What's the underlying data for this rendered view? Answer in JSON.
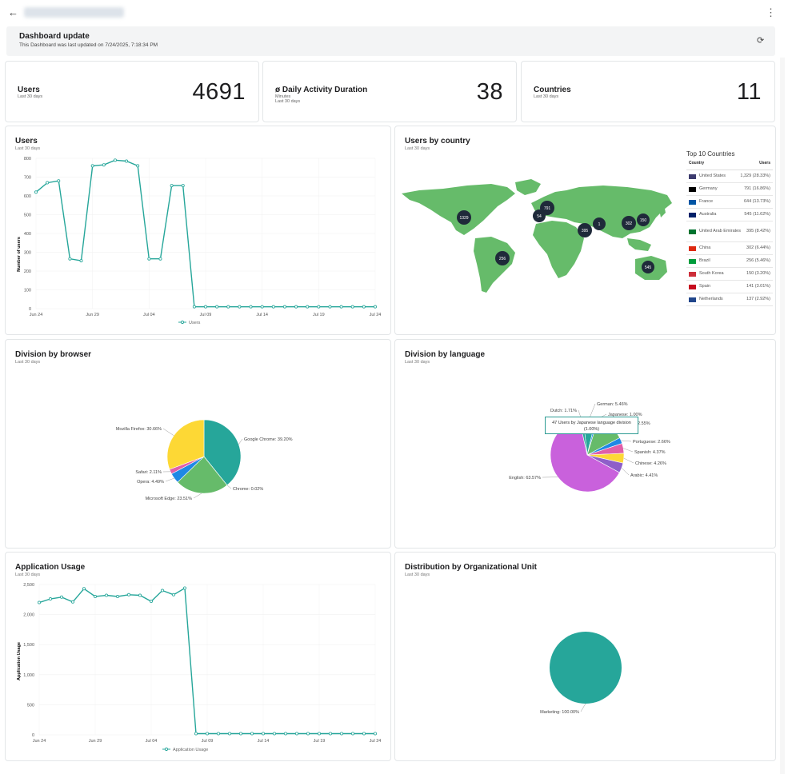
{
  "header": {
    "back_icon": "arrow-left-icon",
    "menu_icon": "kebab-menu-icon",
    "url": ""
  },
  "banner": {
    "title": "Dashboard update",
    "subtitle": "This Dashboard was last updated on 7/24/2025, 7:18:34 PM",
    "refresh_icon": "refresh-icon"
  },
  "kpis": [
    {
      "label": "Users",
      "sub": "Last 30 days",
      "value": "4691"
    },
    {
      "label": "ø Daily Activity Duration",
      "sub1": "Minutes",
      "sub": "Last 30 days",
      "value": "38"
    },
    {
      "label": "Countries",
      "sub": "Last 30 days",
      "value": "11"
    }
  ],
  "users_chart": {
    "title": "Users",
    "sub": "Last 30 days",
    "ylabel": "Number of users",
    "legend": "Users"
  },
  "country_card": {
    "title": "Users by country",
    "sub": "Last 30 days",
    "table_title": "Top 10 Countries",
    "col_country": "Country",
    "col_users": "Users",
    "rows": [
      {
        "name": "United States",
        "users": "1,329 (28.33%)",
        "flag": "#3c3b6e"
      },
      {
        "name": "Germany",
        "users": "791 (16.86%)",
        "flag": "#000000"
      },
      {
        "name": "France",
        "users": "644 (13.73%)",
        "flag": "#0055a4"
      },
      {
        "name": "Australia",
        "users": "545 (11.62%)",
        "flag": "#012169"
      },
      {
        "name": "United Arab Emirates",
        "users": "395 (8.42%)",
        "flag": "#00732f"
      },
      {
        "name": "China",
        "users": "302 (6.44%)",
        "flag": "#de2910"
      },
      {
        "name": "Brazil",
        "users": "256 (5.46%)",
        "flag": "#009c3b"
      },
      {
        "name": "South Korea",
        "users": "150 (3.20%)",
        "flag": "#cd2e3a"
      },
      {
        "name": "Spain",
        "users": "141 (3.01%)",
        "flag": "#c60b1e"
      },
      {
        "name": "Netherlands",
        "users": "137 (2.92%)",
        "flag": "#21468b"
      }
    ],
    "markers": [
      "1329",
      "791",
      "54",
      "395",
      "1",
      "302",
      "150",
      "256",
      "545"
    ]
  },
  "browser_card": {
    "title": "Division by browser",
    "sub": "Last 30 days"
  },
  "language_card": {
    "title": "Division by language",
    "sub": "Last 30 days",
    "tooltip": "47 Users by Japanese language division (1.00%)"
  },
  "app_card": {
    "title": "Application Usage",
    "sub": "Last 30 days",
    "ylabel": "Application Usage",
    "legend": "Application Usage"
  },
  "org_card": {
    "title": "Distribution by Organizational Unit",
    "sub": "Last 30 days"
  },
  "colors": {
    "teal": "#26a69a",
    "green": "#66bb6a",
    "yellow": "#fdd835",
    "blue": "#1e88e5",
    "pink": "#e05fa8",
    "purple": "#c961dc",
    "dark": "#1f2a3a"
  },
  "chart_data": [
    {
      "type": "line",
      "title": "Users",
      "ylabel": "Number of users",
      "ylim": [
        0,
        800
      ],
      "yticks": [
        0,
        100,
        200,
        300,
        400,
        500,
        600,
        700,
        800
      ],
      "xticks": [
        "Jun 24",
        "Jun 29",
        "Jul 04",
        "Jul 09",
        "Jul 14",
        "Jul 19",
        "Jul 24"
      ],
      "series": [
        {
          "name": "Users",
          "values": [
            620,
            670,
            680,
            265,
            255,
            760,
            765,
            790,
            785,
            760,
            265,
            265,
            655,
            655,
            10,
            10,
            10,
            10,
            10,
            10,
            10,
            10,
            10,
            10,
            10,
            10,
            10,
            10,
            10,
            10,
            10
          ]
        }
      ]
    },
    {
      "type": "pie",
      "title": "Division by browser",
      "series": [
        {
          "name": "Google Chrome",
          "value": 39.2,
          "label": "Google Chrome: 39.20%",
          "color": "#26a69a"
        },
        {
          "name": "Chrome",
          "value": 0.02,
          "label": "Chrome: 0.02%",
          "color": "#26a69a"
        },
        {
          "name": "Microsoft Edge",
          "value": 23.51,
          "label": "Microsoft Edge: 23.51%",
          "color": "#66bb6a"
        },
        {
          "name": "Opera",
          "value": 4.49,
          "label": "Opera: 4.49%",
          "color": "#1e88e5"
        },
        {
          "name": "Safari",
          "value": 2.11,
          "label": "Safari: 2.11%",
          "color": "#e05fa8"
        },
        {
          "name": "Mozilla Firefox",
          "value": 30.66,
          "label": "Mozilla Firefox: 30.66%",
          "color": "#fdd835"
        }
      ]
    },
    {
      "type": "pie",
      "title": "Division by language",
      "series": [
        {
          "name": "German",
          "value": 5.46,
          "label": "German: 5.46%",
          "color": "#26a69a"
        },
        {
          "name": "Japanese",
          "value": 1.0,
          "label": "Japanese: 1.00%",
          "color": "#1e88e5"
        },
        {
          "name": "",
          "value": 12.55,
          "label": "12.55%",
          "color": "#66bb6a"
        },
        {
          "name": "Portuguese",
          "value": 2.66,
          "label": "Portuguese: 2.66%",
          "color": "#1e88e5"
        },
        {
          "name": "Spanish",
          "value": 4.37,
          "label": "Spanish: 4.37%",
          "color": "#e05fa8"
        },
        {
          "name": "Chinese",
          "value": 4.26,
          "label": "Chinese: 4.26%",
          "color": "#fdd835"
        },
        {
          "name": "Arabic",
          "value": 4.41,
          "label": "Arabic: 4.41%",
          "color": "#8e5fc9"
        },
        {
          "name": "English",
          "value": 63.57,
          "label": "English: 63.57%",
          "color": "#c961dc"
        },
        {
          "name": "Dutch",
          "value": 1.71,
          "label": "Dutch: 1.71%",
          "color": "#26a69a"
        }
      ]
    },
    {
      "type": "line",
      "title": "Application Usage",
      "ylabel": "Application Usage",
      "ylim": [
        0,
        2500
      ],
      "yticks": [
        "0",
        "500",
        "1,000",
        "1,500",
        "2,000",
        "2,500"
      ],
      "xticks": [
        "Jun 24",
        "Jun 29",
        "Jul 04",
        "Jul 09",
        "Jul 14",
        "Jul 19",
        "Jul 24"
      ],
      "series": [
        {
          "name": "Application Usage",
          "values": [
            2200,
            2260,
            2290,
            2210,
            2430,
            2300,
            2320,
            2300,
            2330,
            2320,
            2220,
            2400,
            2330,
            2440,
            20,
            20,
            20,
            20,
            20,
            20,
            20,
            20,
            20,
            20,
            20,
            20,
            20,
            20,
            20,
            20,
            20
          ]
        }
      ]
    },
    {
      "type": "pie",
      "title": "Distribution by Organizational Unit",
      "series": [
        {
          "name": "Marketing",
          "value": 100,
          "label": "Marketing: 100.00%",
          "color": "#26a69a"
        }
      ]
    }
  ]
}
